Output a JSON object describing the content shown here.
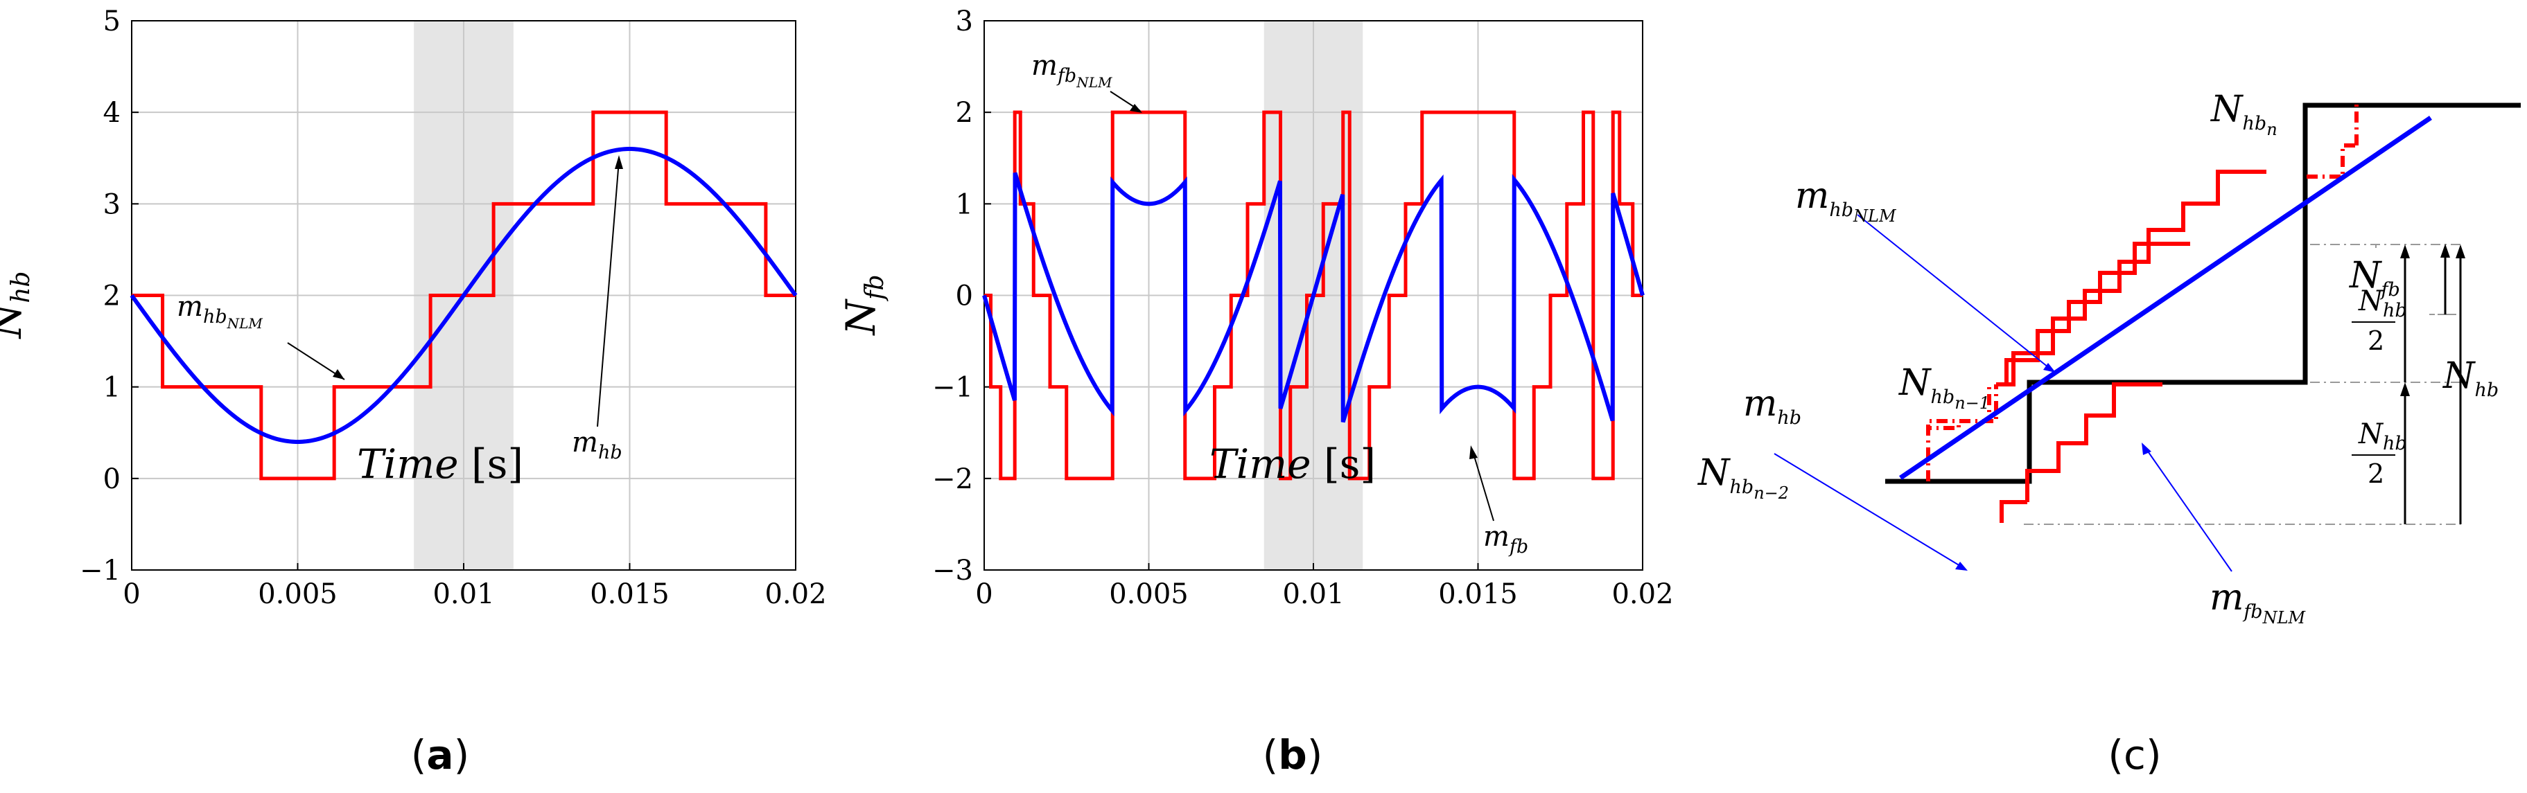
{
  "panels": {
    "a": "a",
    "b": "b",
    "c": "c"
  },
  "chart_data": [
    {
      "id": "a",
      "type": "line",
      "xlabel": "Time",
      "xunit": "[s]",
      "ylabel_base": "N",
      "ylabel_sub": "hb",
      "xlim": [
        0,
        0.02
      ],
      "ylim": [
        -1,
        5
      ],
      "grid": true,
      "xticks": [
        0,
        0.005,
        0.01,
        0.015,
        0.02
      ],
      "xtick_labels": [
        "0",
        "0.005",
        "0.01",
        "0.015",
        "0.02"
      ],
      "yticks": [
        -1,
        0,
        1,
        2,
        3,
        4,
        5
      ],
      "ytick_labels": [
        "−1",
        "0",
        "1",
        "2",
        "3",
        "4",
        "5"
      ],
      "shaded_x": [
        0.0085,
        0.0115
      ],
      "series": [
        {
          "label_base": "m",
          "label_sub": "hb",
          "color": "#0000ff",
          "kind": "sine",
          "offset": 2,
          "amplitude": -1.6,
          "frequency": 50,
          "phase": 0
        },
        {
          "label_base": "m",
          "label_sub": "hb",
          "label_sub2": "NLM",
          "color": "#ff0000",
          "kind": "step",
          "x": [
            0,
            0.00093,
            0.0039,
            0.0061,
            0.009,
            0.0109,
            0.0139,
            0.0161,
            0.0191,
            0.02
          ],
          "y": [
            2,
            1,
            0,
            1,
            2,
            3,
            4,
            3,
            2,
            2
          ]
        }
      ],
      "annotations": [
        {
          "text_base": "m",
          "text_sub": "hb",
          "text_sub2": "NLM",
          "point": [
            0.0065,
            1.0
          ]
        },
        {
          "text_base": "m",
          "text_sub": "hb",
          "point": [
            0.015,
            3.6
          ]
        }
      ]
    },
    {
      "id": "b",
      "type": "line",
      "xlabel": "Time",
      "xunit": "[s]",
      "ylabel_base": "N",
      "ylabel_sub": "fb",
      "xlim": [
        0,
        0.02
      ],
      "ylim": [
        -3,
        3
      ],
      "grid": true,
      "xticks": [
        0,
        0.005,
        0.01,
        0.015,
        0.02
      ],
      "xtick_labels": [
        "0",
        "0.005",
        "0.01",
        "0.015",
        "0.02"
      ],
      "yticks": [
        -3,
        -2,
        -1,
        0,
        1,
        2,
        3
      ],
      "ytick_labels": [
        "−3",
        "−2",
        "−1",
        "0",
        "1",
        "2",
        "3"
      ],
      "shaded_x": [
        0.0085,
        0.0115
      ],
      "series": [
        {
          "label_base": "m",
          "label_sub": "fb",
          "color": "#0000ff",
          "kind": "fb",
          "breakpoints": [
            0.00093,
            0.0039,
            0.0061,
            0.009,
            0.0109,
            0.0139,
            0.0161,
            0.0191
          ]
        },
        {
          "label_base": "m",
          "label_sub": "fb",
          "label_sub2": "NLM",
          "color": "#ff0000",
          "kind": "step",
          "x": [
            0,
            0.0002,
            0.0005,
            0.00093,
            0.0011,
            0.0015,
            0.002,
            0.0025,
            0.0031,
            0.0039,
            0.0061,
            0.007,
            0.0075,
            0.008,
            0.0085,
            0.009,
            0.0093,
            0.0098,
            0.0103,
            0.0109,
            0.0111,
            0.0117,
            0.0123,
            0.0128,
            0.0133,
            0.0139,
            0.0161,
            0.0167,
            0.0172,
            0.0177,
            0.0182,
            0.0185,
            0.0191,
            0.0193,
            0.0197,
            0.02
          ],
          "y": [
            0,
            -1,
            -2,
            2,
            1,
            0,
            -1,
            -2,
            -2,
            2,
            -2,
            -1,
            0,
            1,
            2,
            -2,
            -1,
            0,
            1,
            2,
            -2,
            -1,
            0,
            1,
            2,
            2,
            -2,
            -1,
            0,
            1,
            2,
            -2,
            2,
            1,
            0,
            0
          ]
        }
      ],
      "annotations": [
        {
          "text_base": "m",
          "text_sub": "fb",
          "text_sub2": "NLM",
          "point": [
            0.0048,
            2.0
          ]
        },
        {
          "text_base": "m",
          "text_sub": "fb",
          "point": [
            0.015,
            -1.6
          ]
        }
      ]
    },
    {
      "id": "c",
      "type": "diagram",
      "labels": {
        "nhbn": {
          "base": "N",
          "sub": "hb",
          "sub2": "n"
        },
        "nhbn1": {
          "base": "N",
          "sub": "hb",
          "sub2": "n−1"
        },
        "nhbn2": {
          "base": "N",
          "sub": "hb",
          "sub2": "n−2"
        },
        "mhbnlm": {
          "base": "m",
          "sub": "hb",
          "sub2": "NLM"
        },
        "mhb": {
          "base": "m",
          "sub": "hb"
        },
        "mfbnlm": {
          "base": "m",
          "sub": "fb",
          "sub2": "NLM"
        },
        "nfb": {
          "base": "N",
          "sub": "fb"
        },
        "nhbhalf_num": {
          "base": "N",
          "sub": "hb"
        },
        "nhbhalf_den": "2",
        "nhb": {
          "base": "N",
          "sub": "hb"
        }
      },
      "colors": {
        "staircase": "#000000",
        "line": "#0000ff",
        "steps": "#ff0000",
        "guides": "#999999"
      }
    }
  ]
}
